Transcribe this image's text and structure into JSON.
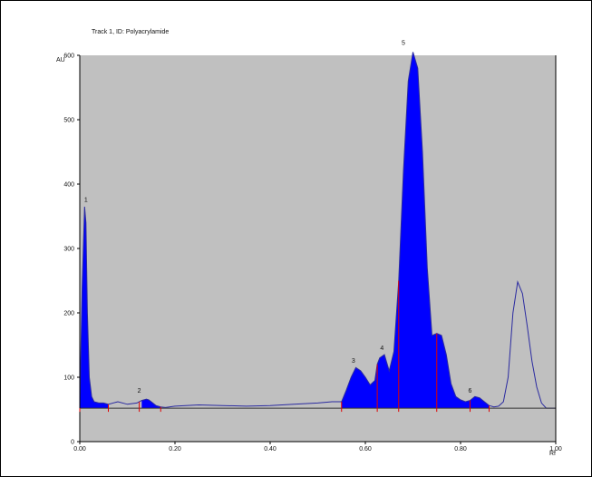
{
  "chart_data": {
    "type": "area",
    "title": "Track 1, ID: Polyacrylamide",
    "ylabel": "AU",
    "xunit": "Rf",
    "xlim": [
      0.0,
      1.0
    ],
    "ylim": [
      0,
      600
    ],
    "x_ticks": [
      "0.00",
      "0.20",
      "0.40",
      "0.60",
      "0.80",
      "1.00"
    ],
    "y_ticks": [
      "0",
      "100",
      "200",
      "300",
      "400",
      "500",
      "600"
    ],
    "baseline": 52,
    "grid": false,
    "colors": {
      "background": "#c0c0c0",
      "fill": "#0000ff",
      "line": "#2a2aa0",
      "marker": "#e00000"
    },
    "trace": {
      "x": [
        0.0,
        0.005,
        0.01,
        0.013,
        0.016,
        0.02,
        0.025,
        0.03,
        0.04,
        0.05,
        0.06,
        0.08,
        0.1,
        0.12,
        0.13,
        0.14,
        0.145,
        0.15,
        0.16,
        0.17,
        0.18,
        0.2,
        0.25,
        0.3,
        0.35,
        0.4,
        0.45,
        0.5,
        0.53,
        0.55,
        0.56,
        0.57,
        0.58,
        0.59,
        0.6,
        0.61,
        0.62,
        0.625,
        0.63,
        0.64,
        0.65,
        0.66,
        0.67,
        0.68,
        0.69,
        0.7,
        0.71,
        0.72,
        0.73,
        0.74,
        0.75,
        0.76,
        0.77,
        0.78,
        0.79,
        0.8,
        0.81,
        0.82,
        0.83,
        0.84,
        0.85,
        0.86,
        0.87,
        0.88,
        0.89,
        0.9,
        0.91,
        0.92,
        0.93,
        0.94,
        0.95,
        0.96,
        0.97,
        0.98,
        0.99,
        1.0
      ],
      "y": [
        52,
        240,
        365,
        340,
        200,
        100,
        70,
        62,
        60,
        60,
        58,
        62,
        58,
        60,
        64,
        66,
        65,
        62,
        56,
        54,
        53,
        55,
        57,
        56,
        55,
        56,
        58,
        60,
        62,
        62,
        80,
        100,
        115,
        110,
        100,
        88,
        95,
        120,
        130,
        135,
        110,
        140,
        250,
        420,
        560,
        605,
        580,
        450,
        270,
        165,
        168,
        165,
        135,
        90,
        70,
        65,
        62,
        64,
        70,
        68,
        62,
        56,
        54,
        55,
        62,
        100,
        200,
        248,
        230,
        180,
        125,
        85,
        60,
        52,
        52,
        52
      ]
    },
    "filled_segments": [
      [
        0.0,
        0.06
      ],
      [
        0.13,
        0.17
      ],
      [
        0.55,
        0.86
      ]
    ],
    "marker_x": [
      0.0,
      0.06,
      0.125,
      0.17,
      0.55,
      0.625,
      0.67,
      0.75,
      0.82,
      0.86
    ],
    "peak_labels": [
      {
        "label": "1",
        "x": 0.013,
        "y": 368
      },
      {
        "label": "2",
        "x": 0.125,
        "y": 72
      },
      {
        "label": "3",
        "x": 0.575,
        "y": 118
      },
      {
        "label": "4",
        "x": 0.635,
        "y": 138
      },
      {
        "label": "5",
        "x": 0.68,
        "y": 612
      },
      {
        "label": "6",
        "x": 0.82,
        "y": 72
      }
    ]
  }
}
